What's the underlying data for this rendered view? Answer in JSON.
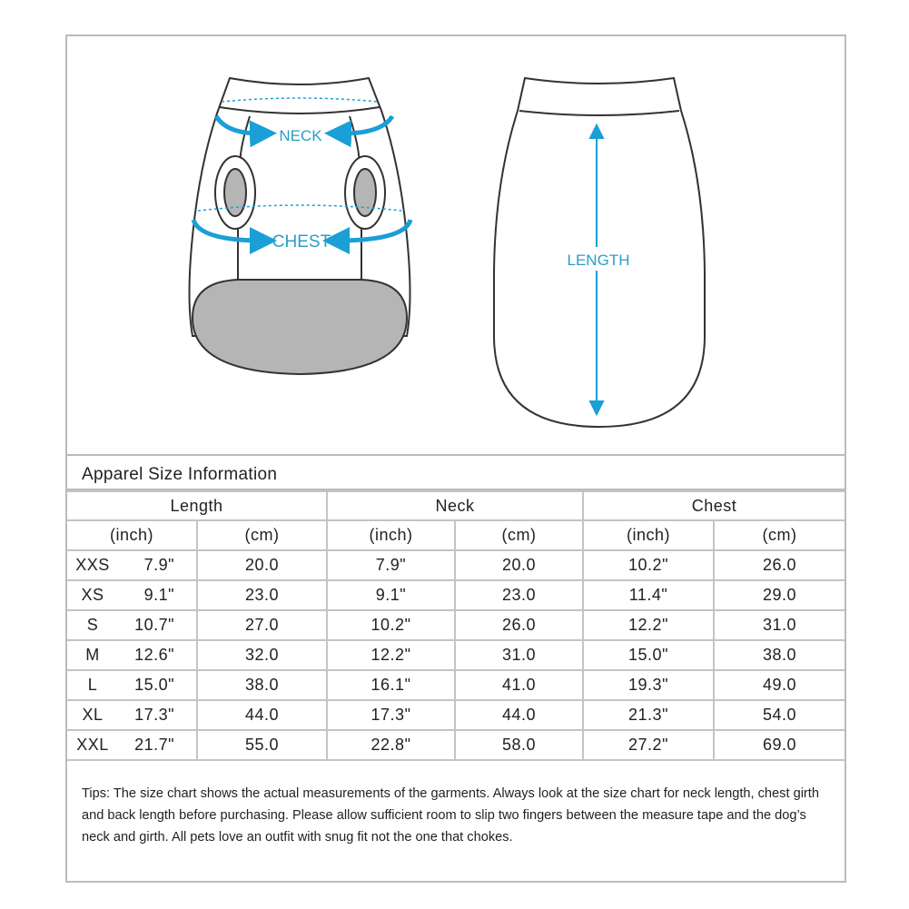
{
  "diagram": {
    "labels": {
      "neck": "NECK",
      "chest": "CHEST",
      "length": "LENGTH"
    },
    "colors": {
      "arrow": "#1a9fd6",
      "label": "#2a9fc4",
      "outline": "#333333",
      "gray": "#b5b5b5"
    }
  },
  "table": {
    "title": "Apparel Size Information",
    "groups": [
      "Length",
      "Neck",
      "Chest"
    ],
    "units": [
      "(inch)",
      "(cm)",
      "(inch)",
      "(cm)",
      "(inch)",
      "(cm)"
    ],
    "rows": [
      {
        "size": "XXS",
        "length_in": "7.9\"",
        "length_cm": "20.0",
        "neck_in": "7.9\"",
        "neck_cm": "20.0",
        "chest_in": "10.2\"",
        "chest_cm": "26.0"
      },
      {
        "size": "XS",
        "length_in": "9.1\"",
        "length_cm": "23.0",
        "neck_in": "9.1\"",
        "neck_cm": "23.0",
        "chest_in": "11.4\"",
        "chest_cm": "29.0"
      },
      {
        "size": "S",
        "length_in": "10.7\"",
        "length_cm": "27.0",
        "neck_in": "10.2\"",
        "neck_cm": "26.0",
        "chest_in": "12.2\"",
        "chest_cm": "31.0"
      },
      {
        "size": "M",
        "length_in": "12.6\"",
        "length_cm": "32.0",
        "neck_in": "12.2\"",
        "neck_cm": "31.0",
        "chest_in": "15.0\"",
        "chest_cm": "38.0"
      },
      {
        "size": "L",
        "length_in": "15.0\"",
        "length_cm": "38.0",
        "neck_in": "16.1\"",
        "neck_cm": "41.0",
        "chest_in": "19.3\"",
        "chest_cm": "49.0"
      },
      {
        "size": "XL",
        "length_in": "17.3\"",
        "length_cm": "44.0",
        "neck_in": "17.3\"",
        "neck_cm": "44.0",
        "chest_in": "21.3\"",
        "chest_cm": "54.0"
      },
      {
        "size": "XXL",
        "length_in": "21.7\"",
        "length_cm": "55.0",
        "neck_in": "22.8\"",
        "neck_cm": "58.0",
        "chest_in": "27.2\"",
        "chest_cm": "69.0"
      }
    ]
  },
  "tips": "Tips:  The size chart shows the actual measurements of the garments. Always look at the size chart for neck length, chest girth and back length before purchasing. Please allow sufficient room to slip two fingers between the measure tape and the dog’s neck and girth. All pets love an outfit with snug fit not the one that chokes."
}
